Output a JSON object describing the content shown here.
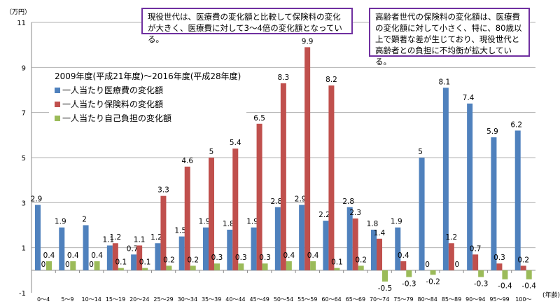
{
  "chart_data": {
    "type": "bar",
    "unit_label": "（万円）",
    "xlabel": "(年齢)",
    "ylim": [
      -1,
      11
    ],
    "yticks": [
      -1,
      1,
      3,
      5,
      7,
      9,
      11
    ],
    "grid": true,
    "legend_title": "2009年度(平成21年度)～2016年度(平成28年度)",
    "legend_placement": "top-left",
    "categories": [
      "0～4",
      "5～9",
      "10～14",
      "15～19",
      "20～24",
      "25～29",
      "30～34",
      "35～39",
      "40～44",
      "45～49",
      "50～54",
      "55～59",
      "60～64",
      "65～69",
      "70～74",
      "75～79",
      "80～84",
      "85～89",
      "90～94",
      "95～99",
      "100～"
    ],
    "series": [
      {
        "name": "一人当たり医療費の変化額",
        "color": "#4f81bd",
        "values": [
          2.9,
          1.9,
          2,
          1.1,
          0.7,
          1.2,
          1.5,
          1.9,
          1.8,
          1.9,
          2.8,
          2.9,
          2.2,
          2.8,
          1.8,
          1.9,
          5,
          8.1,
          7.4,
          5.9,
          6.2
        ]
      },
      {
        "name": "一人当たり保険料の変化額",
        "color": "#c0504d",
        "values": [
          0,
          0,
          0,
          1.2,
          1.1,
          3.3,
          4.6,
          5,
          5.4,
          6.5,
          8.3,
          9.9,
          8.2,
          2.3,
          1.4,
          0.4,
          0,
          1.2,
          0.7,
          0.3,
          0.2
        ]
      },
      {
        "name": "一人当たり自己負担の変化額",
        "color": "#9bbb59",
        "values": [
          0.4,
          0.4,
          0.4,
          0.1,
          0.1,
          0.2,
          0.2,
          0.3,
          0.3,
          0.3,
          0.4,
          0.4,
          0.1,
          0.2,
          -0.5,
          -0.3,
          -0.2,
          0,
          -0.3,
          -0.4,
          -0.4
        ]
      }
    ],
    "annotations": [
      "現役世代は、医療費の変化額と比較して保険料の変化が大きく、医療費に対して3～4倍の変化額となっている。",
      "高齢者世代の保険料の変化額は、医療費の変化額に対して小さく、特に、80歳以上で顕著な差が生じており、現役世代と高齢者との負担に不均衡が拡大している。"
    ]
  }
}
